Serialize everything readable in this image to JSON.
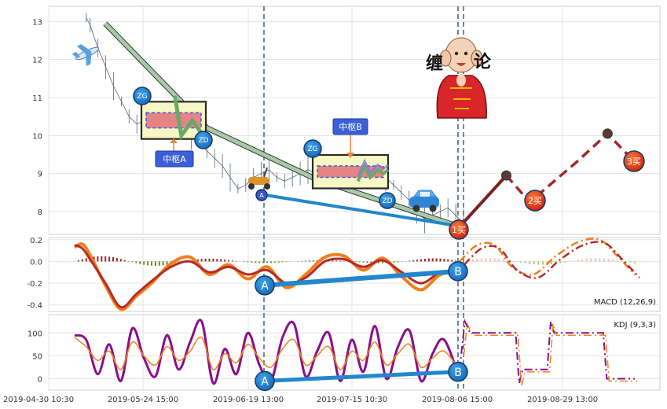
{
  "chart_data": [
    {
      "panel": "price",
      "type": "line",
      "ylim": [
        7.4,
        13.4
      ],
      "yticks": [
        8,
        9,
        10,
        11,
        12,
        13
      ],
      "x_ticks": [
        "2019-04-30 10:30",
        "2019-05-24 15:00",
        "2019-06-19 13:00",
        "2019-07-15 10:30",
        "2019-08-06 15:00",
        "2019-08-29 13:00"
      ],
      "series": [
        {
          "style": "gray-candles",
          "x": [
            0.03,
            0.04,
            0.06,
            0.08,
            0.1,
            0.12,
            0.14,
            0.16,
            0.18,
            0.2,
            0.22,
            0.24,
            0.26,
            0.28,
            0.3,
            0.32,
            0.34,
            0.36,
            0.38,
            0.4,
            0.42,
            0.44,
            0.46,
            0.48,
            0.5,
            0.52,
            0.54,
            0.56,
            0.58,
            0.6,
            0.62,
            0.64,
            0.66,
            0.68,
            0.7,
            0.72,
            0.74,
            0.76,
            0.78,
            0.8,
            0.82,
            0.84,
            0.86,
            0.88,
            0.9,
            0.92,
            0.94,
            0.96,
            0.98,
            1.0
          ],
          "y": [
            13.1,
            12.9,
            12.3,
            11.8,
            11.3,
            10.9,
            10.5,
            10.3,
            10.4,
            10.5,
            10.7,
            10.3,
            10.6,
            10.2,
            10.0,
            9.8,
            9.6,
            9.4,
            9.2,
            8.9,
            8.6,
            8.7,
            8.9,
            9.0,
            9.1,
            8.9,
            8.8,
            8.9,
            9.0,
            9.1,
            9.0,
            9.1,
            8.9,
            9.2,
            9.0,
            8.8,
            9.1,
            9.2,
            9.0,
            8.9,
            8.7,
            8.5,
            8.3,
            8.0,
            7.8,
            7.9,
            8.0,
            8.1,
            7.9,
            7.7
          ]
        },
        {
          "style": "green-stroke",
          "x": [
            0.06,
            0.33,
            0.62,
            1.0
          ],
          "y": [
            12.95,
            10.2,
            8.85,
            7.6
          ]
        },
        {
          "style": "green-stroke",
          "x": [
            0.52,
            0.62,
            0.79,
            1.0
          ],
          "y": [
            11.05,
            10.0,
            10.4,
            9.9
          ]
        },
        {
          "style": "green-stroke",
          "x": [
            0.6,
            0.69,
            0.76,
            0.86,
            0.94,
            1.0
          ],
          "y": [
            8.8,
            9.2,
            8.9,
            9.1,
            9.0,
            9.1
          ]
        },
        {
          "style": "red-forecast",
          "x": [
            0.0,
            0.12,
            0.18,
            0.3,
            0.38,
            0.45
          ],
          "y": [
            7.6,
            8.95,
            8.25,
            9.3,
            10.05,
            9.3
          ]
        }
      ],
      "zones": [
        {
          "name": "中枢A",
          "x0": 0.52,
          "x1": 0.8,
          "y0": 10.2,
          "y1": 10.6
        },
        {
          "name": "中枢B",
          "x0": 0.62,
          "x1": 0.95,
          "y0": 8.9,
          "y1": 9.2
        }
      ],
      "annotations": [
        "ZG",
        "ZD",
        "ZG",
        "ZD",
        "A",
        "1买",
        "2买",
        "3买",
        "中枢A",
        "中枢B",
        "缠",
        "论"
      ]
    },
    {
      "panel": "macd",
      "type": "line",
      "ylim": [
        -0.46,
        0.22
      ],
      "yticks": [
        0.2,
        0.0,
        -0.2,
        -0.4
      ],
      "label": "MACD (12,26,9)",
      "series": [
        {
          "style": "red",
          "x": [
            0,
            0.02,
            0.04,
            0.08,
            0.12,
            0.16,
            0.2,
            0.25,
            0.3,
            0.35,
            0.4,
            0.45,
            0.5,
            0.55,
            0.6,
            0.65,
            0.7,
            0.75,
            0.8,
            0.85,
            0.9,
            0.95,
            1.0
          ],
          "y": [
            0.15,
            0.12,
            0.02,
            -0.2,
            -0.42,
            -0.3,
            -0.18,
            -0.05,
            0.0,
            -0.1,
            -0.05,
            -0.12,
            -0.08,
            -0.2,
            -0.15,
            0.0,
            0.02,
            -0.05,
            0.01,
            -0.1,
            -0.2,
            -0.1,
            -0.08
          ]
        },
        {
          "style": "orange",
          "x": [
            0,
            0.02,
            0.04,
            0.08,
            0.12,
            0.16,
            0.2,
            0.25,
            0.3,
            0.35,
            0.4,
            0.45,
            0.5,
            0.55,
            0.6,
            0.65,
            0.7,
            0.75,
            0.8,
            0.85,
            0.9,
            0.95,
            1.0
          ],
          "y": [
            0.13,
            0.16,
            0.06,
            -0.22,
            -0.44,
            -0.32,
            -0.2,
            -0.02,
            0.04,
            -0.12,
            -0.03,
            -0.16,
            -0.05,
            -0.24,
            -0.12,
            0.04,
            0.05,
            -0.08,
            0.03,
            -0.14,
            -0.26,
            -0.12,
            -0.1
          ]
        },
        {
          "style": "forecast-dashdot",
          "x": [
            0.0,
            0.1,
            0.2,
            0.3,
            0.42,
            0.55,
            0.68,
            0.8,
            0.9,
            1.0
          ],
          "y": [
            0.0,
            0.15,
            0.15,
            -0.05,
            -0.12,
            0.05,
            0.18,
            0.2,
            0.05,
            -0.12
          ]
        }
      ],
      "divergence": {
        "points": [
          {
            "label": "A",
            "y": -0.22
          },
          {
            "label": "B",
            "y": -0.09
          }
        ]
      }
    },
    {
      "panel": "kdj",
      "type": "line",
      "ylim": [
        -25,
        140
      ],
      "yticks": [
        100,
        50,
        0
      ],
      "label": "KDJ (9,3,3)",
      "series": [
        {
          "style": "orange-K",
          "x": [
            0,
            0.03,
            0.06,
            0.09,
            0.12,
            0.15,
            0.18,
            0.21,
            0.24,
            0.27,
            0.3,
            0.33,
            0.36,
            0.39,
            0.42,
            0.45,
            0.48,
            0.51,
            0.54,
            0.57,
            0.6,
            0.63,
            0.66,
            0.69,
            0.72,
            0.75,
            0.78,
            0.81,
            0.84,
            0.87,
            0.9,
            0.93,
            0.96,
            1.0
          ],
          "y": [
            90,
            70,
            40,
            60,
            20,
            80,
            50,
            30,
            70,
            40,
            60,
            90,
            20,
            55,
            35,
            75,
            45,
            25,
            65,
            85,
            30,
            50,
            70,
            20,
            60,
            40,
            80,
            30,
            55,
            75,
            25,
            45,
            60,
            20
          ]
        },
        {
          "style": "purple-J",
          "x": [
            0,
            0.03,
            0.06,
            0.09,
            0.12,
            0.15,
            0.18,
            0.21,
            0.24,
            0.27,
            0.3,
            0.33,
            0.36,
            0.39,
            0.42,
            0.45,
            0.48,
            0.51,
            0.54,
            0.57,
            0.6,
            0.63,
            0.66,
            0.69,
            0.72,
            0.75,
            0.78,
            0.81,
            0.84,
            0.87,
            0.9,
            0.93,
            0.96,
            1.0
          ],
          "y": [
            95,
            85,
            10,
            75,
            -5,
            110,
            45,
            5,
            95,
            20,
            80,
            125,
            -10,
            65,
            10,
            100,
            30,
            -5,
            90,
            120,
            5,
            60,
            100,
            -5,
            85,
            15,
            115,
            0,
            70,
            105,
            -5,
            55,
            85,
            0
          ]
        },
        {
          "style": "forecast-dashdot",
          "x": [
            0.0,
            0.03,
            0.06,
            0.3,
            0.32,
            0.34,
            0.36,
            0.38,
            0.5,
            0.52,
            0.54,
            0.8,
            0.82,
            0.84,
            0.86,
            1.0
          ],
          "y": [
            20,
            125,
            100,
            100,
            100,
            -10,
            20,
            20,
            20,
            125,
            100,
            100,
            100,
            0,
            0,
            0
          ]
        }
      ],
      "divergence": {
        "points": [
          {
            "label": "A",
            "y": -5
          },
          {
            "label": "B",
            "y": 15
          }
        ]
      }
    }
  ]
}
